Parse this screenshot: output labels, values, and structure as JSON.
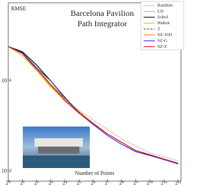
{
  "chart_data": {
    "type": "line",
    "title": [
      "Barcelona Pavilion",
      "Path Integrator"
    ],
    "xlabel": "Number of Points",
    "ylabel": "RMSE",
    "xlog": true,
    "ylog": true,
    "legend": "upper right",
    "x": [
      1,
      2,
      4,
      8,
      16,
      32,
      64,
      128,
      256,
      512,
      1024,
      2048,
      4096
    ],
    "xlim": [
      1,
      4700
    ],
    "ylim": [
      0.0078,
      0.73
    ],
    "xticks": [
      {
        "value": 1,
        "label": "2⁰"
      },
      {
        "value": 2,
        "label": "2¹"
      },
      {
        "value": 4,
        "label": "2²"
      },
      {
        "value": 8,
        "label": "2³"
      },
      {
        "value": 16,
        "label": "2⁴"
      },
      {
        "value": 32,
        "label": "2⁵"
      },
      {
        "value": 64,
        "label": "2⁶"
      },
      {
        "value": 128,
        "label": "2⁷"
      },
      {
        "value": 256,
        "label": "2⁸"
      },
      {
        "value": 512,
        "label": "2⁹"
      },
      {
        "value": 1024,
        "label": "2¹⁰"
      },
      {
        "value": 2048,
        "label": "2¹¹"
      },
      {
        "value": 4096,
        "label": "2¹²"
      }
    ],
    "yticks": [
      {
        "value": 0.1,
        "label": "10⁻¹"
      },
      {
        "value": 0.01,
        "label": "10⁻²"
      }
    ],
    "series": [
      {
        "name": "Random",
        "color": "#c8c8c8",
        "values": [
          0.24,
          0.19,
          0.13,
          0.088,
          0.064,
          0.047,
          0.037,
          0.029,
          0.023,
          0.019,
          0.016,
          0.0145,
          0.013
        ]
      },
      {
        "name": "LD",
        "color": "#66ee55",
        "values": [
          0.24,
          0.2,
          0.13,
          0.088,
          0.062,
          0.045,
          0.034,
          0.026,
          0.021,
          0.017,
          0.0152,
          0.0136,
          0.0122
        ]
      },
      {
        "name": "Sobol",
        "color": "#000000",
        "values": [
          0.24,
          0.21,
          0.15,
          0.1,
          0.065,
          0.045,
          0.034,
          0.026,
          0.021,
          0.017,
          0.0152,
          0.0136,
          0.0122
        ]
      },
      {
        "name": "Halton",
        "color": "#f5c400",
        "values": [
          0.24,
          0.19,
          0.13,
          0.085,
          0.062,
          0.045,
          0.033,
          0.026,
          0.021,
          0.017,
          0.0153,
          0.0137,
          0.0123
        ]
      },
      {
        "name": "Z",
        "color": "#333333",
        "dash": true,
        "values": [
          0.24,
          0.2,
          0.135,
          0.09,
          0.063,
          0.045,
          0.034,
          0.026,
          0.021,
          0.017,
          0.0153,
          0.0137,
          0.0123
        ]
      },
      {
        "name": "SZ-16D",
        "color": "#ff7f00",
        "values": [
          0.24,
          0.2,
          0.14,
          0.092,
          0.064,
          0.046,
          0.034,
          0.026,
          0.021,
          0.017,
          0.0153,
          0.0136,
          0.0122
        ]
      },
      {
        "name": "SZ-G",
        "color": "#2222dd",
        "values": [
          0.24,
          0.205,
          0.14,
          0.1,
          0.066,
          0.044,
          0.033,
          0.025,
          0.02,
          0.0165,
          0.015,
          0.0135,
          0.0121
        ]
      },
      {
        "name": "SZ-Z",
        "color": "#ee1133",
        "values": [
          0.24,
          0.2,
          0.135,
          0.09,
          0.06,
          0.044,
          0.034,
          0.026,
          0.021,
          0.017,
          0.0153,
          0.0137,
          0.0123
        ]
      }
    ]
  }
}
